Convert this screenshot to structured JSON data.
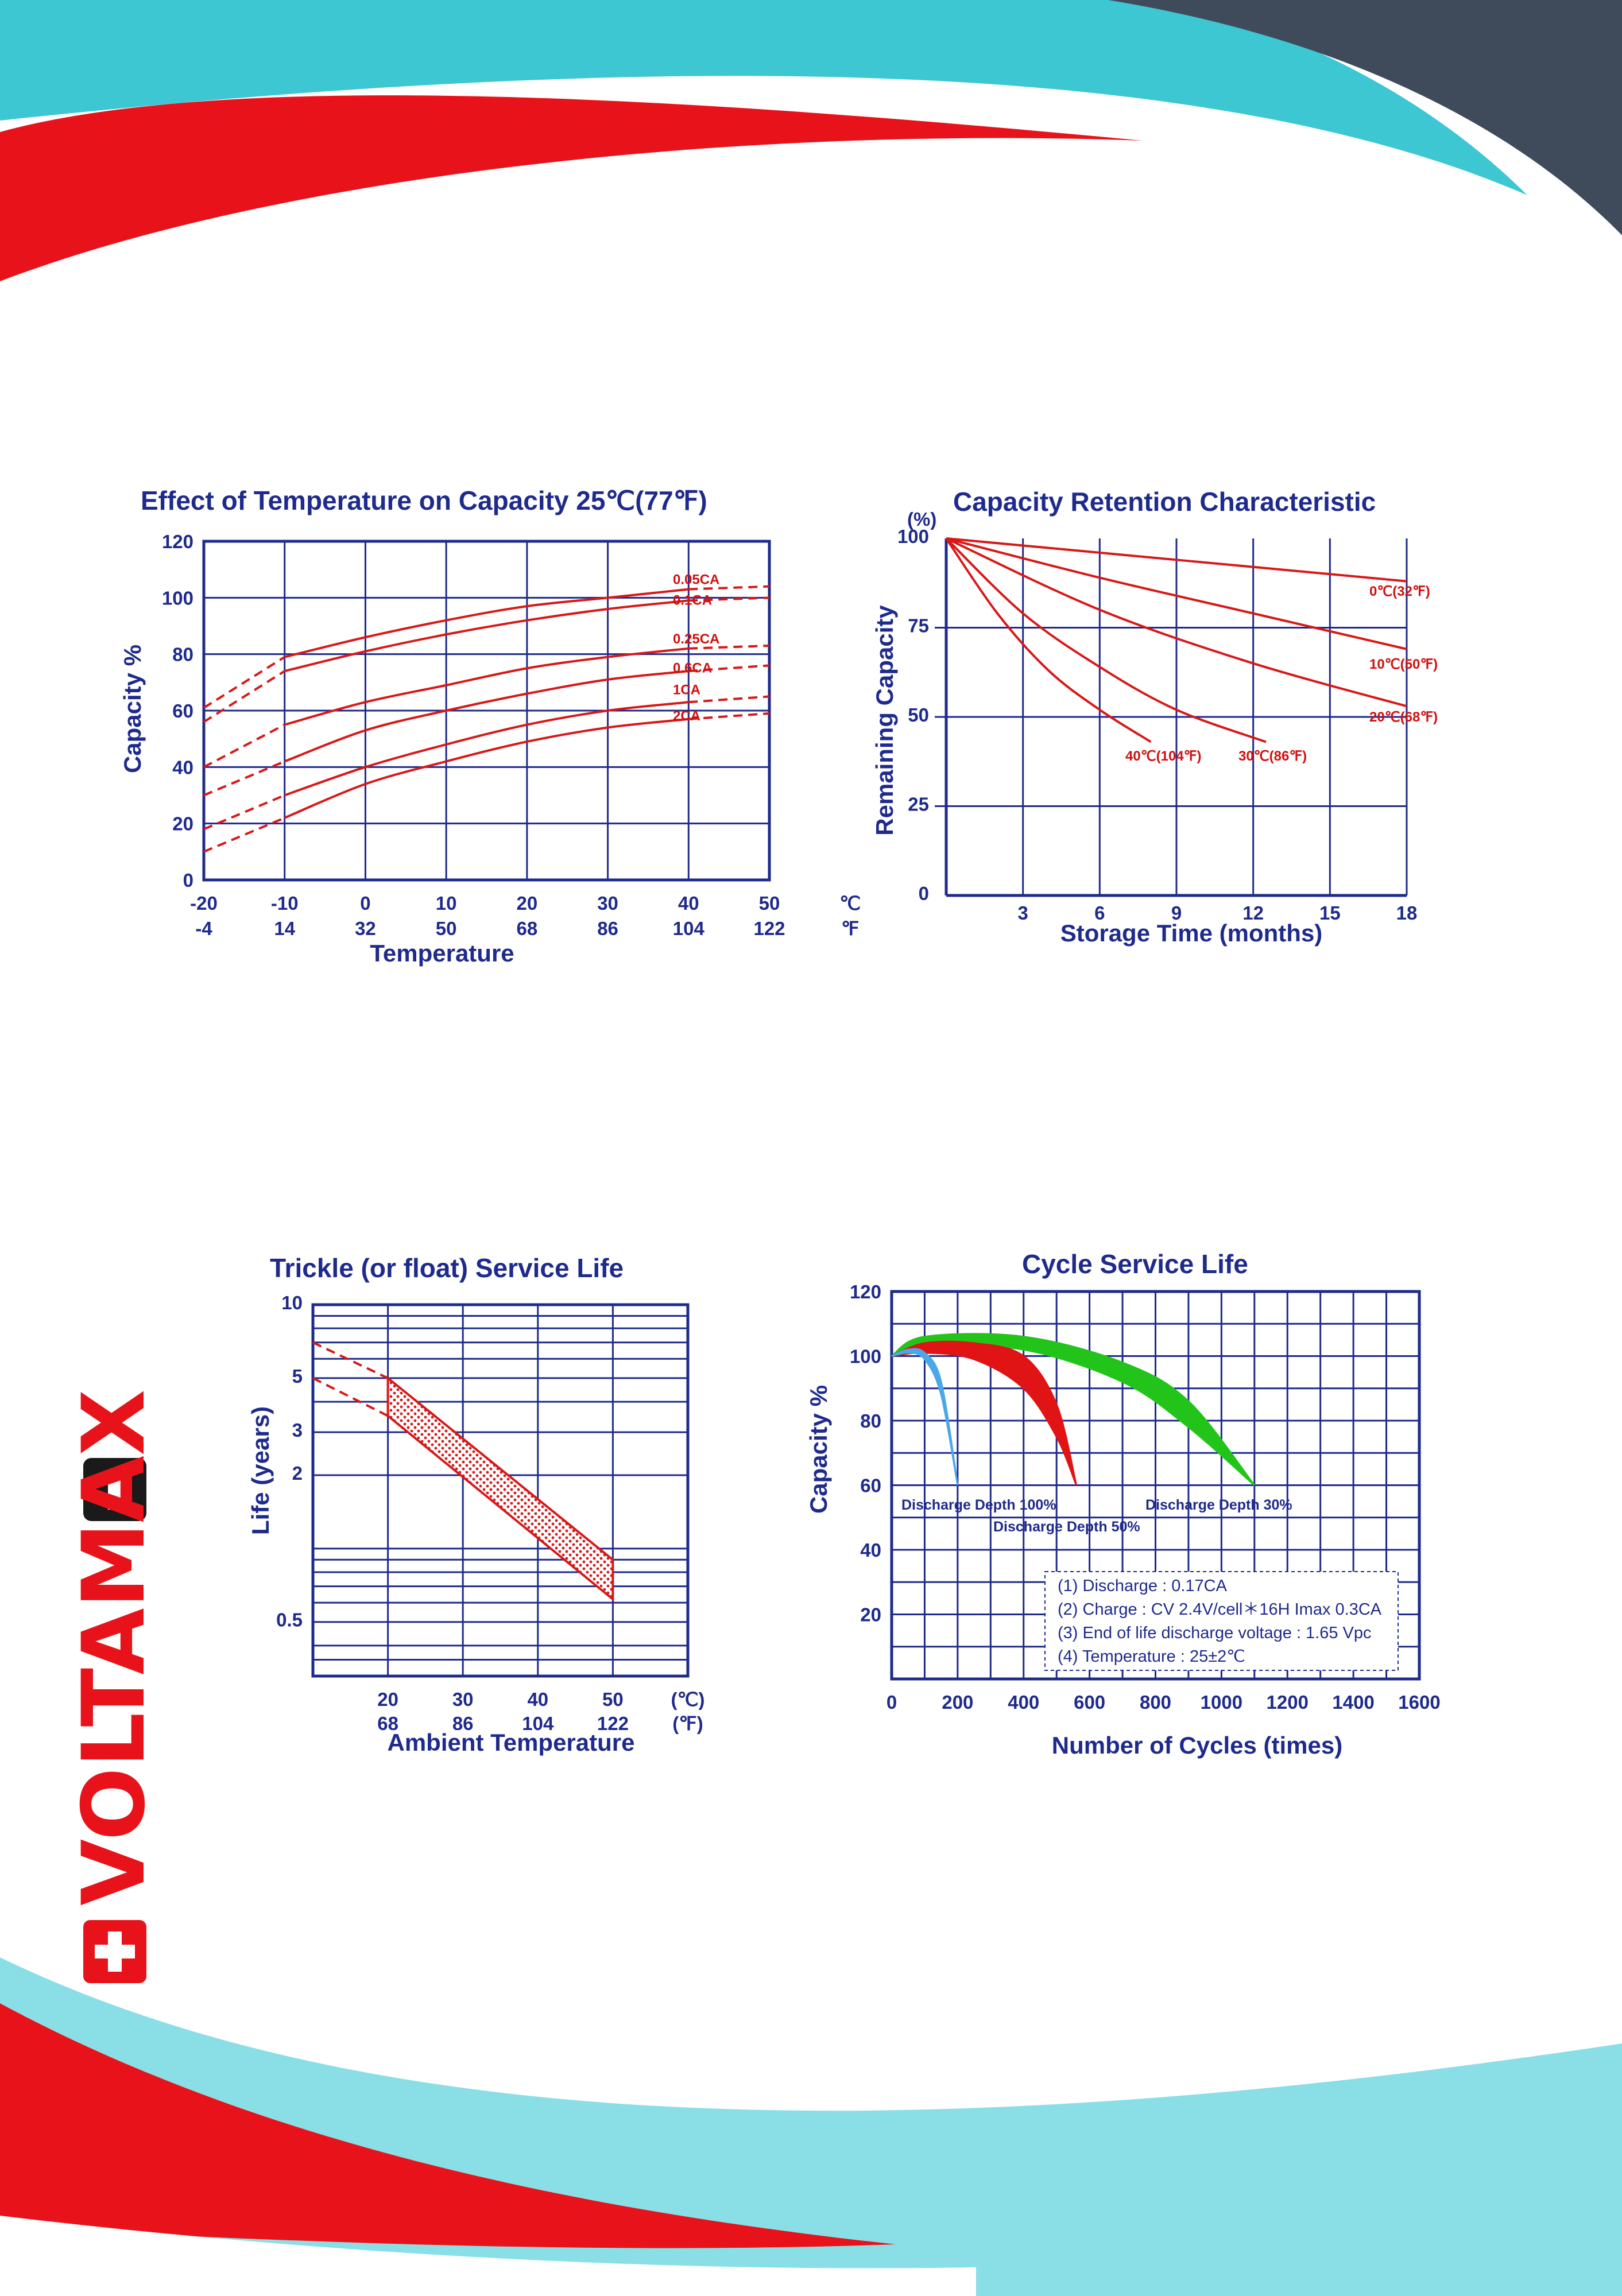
{
  "colors": {
    "navy": "#1e2a8c",
    "curve_red": "#d81818",
    "accent_red": "#e8131a",
    "accent_cyan": "#3cc7d3",
    "accent_dark": "#3f4b5b",
    "cycle_blue": "#4aa8e8",
    "cycle_green": "#22c41a"
  },
  "brand": {
    "name": "VOLTAMAX",
    "icon": "swiss-cross-icon"
  },
  "chart_data": [
    {
      "id": "temp_capacity",
      "type": "line",
      "title": "Effect of Temperature on Capacity  25℃(77℉)",
      "xlabel": "Temperature",
      "ylabel": "Capacity %",
      "xlim": [
        -20,
        50
      ],
      "ylim": [
        0,
        120
      ],
      "x_ticks_c": [
        "-20",
        "-10",
        "0",
        "10",
        "20",
        "30",
        "40",
        "50",
        "℃"
      ],
      "x_ticks_f": [
        "-4",
        "14",
        "32",
        "50",
        "68",
        "86",
        "104",
        "122",
        "℉"
      ],
      "y_ticks": [
        "0",
        "20",
        "40",
        "60",
        "80",
        "100",
        "120"
      ],
      "grid": true,
      "series": [
        {
          "name": "0.05CA",
          "x": [
            -20,
            -10,
            0,
            10,
            20,
            30,
            40,
            50
          ],
          "values": [
            61,
            79,
            86,
            92,
            97,
            100,
            103,
            104
          ]
        },
        {
          "name": "0.1CA",
          "x": [
            -20,
            -10,
            0,
            10,
            20,
            30,
            40,
            50
          ],
          "values": [
            56,
            74,
            81,
            87,
            92,
            96,
            99,
            100
          ]
        },
        {
          "name": "0.25CA",
          "x": [
            -20,
            -10,
            0,
            10,
            20,
            30,
            40,
            50
          ],
          "values": [
            40,
            55,
            63,
            69,
            75,
            79,
            82,
            83
          ]
        },
        {
          "name": "0.6CA",
          "x": [
            -20,
            -10,
            0,
            10,
            20,
            30,
            40,
            50
          ],
          "values": [
            30,
            42,
            53,
            60,
            66,
            71,
            74,
            76
          ]
        },
        {
          "name": "1CA",
          "x": [
            -20,
            -10,
            0,
            10,
            20,
            30,
            40,
            50
          ],
          "values": [
            18,
            30,
            40,
            48,
            55,
            60,
            63,
            65
          ]
        },
        {
          "name": "2CA",
          "x": [
            -20,
            -10,
            0,
            10,
            20,
            30,
            40,
            50
          ],
          "values": [
            10,
            22,
            34,
            42,
            49,
            54,
            57,
            59
          ]
        }
      ]
    },
    {
      "id": "capacity_retention",
      "type": "line",
      "title": "Capacity Retention Characteristic",
      "xlabel": "Storage Time (months)",
      "ylabel": "Remaining Capacity",
      "yunit": "(%)",
      "xlim": [
        0,
        18
      ],
      "ylim": [
        0,
        100
      ],
      "x_ticks": [
        "3",
        "6",
        "9",
        "12",
        "15",
        "18"
      ],
      "y_ticks": [
        "0",
        "25",
        "50",
        "75",
        "100"
      ],
      "grid": true,
      "series": [
        {
          "name": "0℃(32℉)",
          "x": [
            0,
            6,
            12,
            18
          ],
          "values": [
            100,
            96,
            92,
            88
          ]
        },
        {
          "name": "10℃(50℉)",
          "x": [
            0,
            6,
            12,
            18
          ],
          "values": [
            100,
            89,
            79,
            69
          ]
        },
        {
          "name": "20℃(68℉)",
          "x": [
            0,
            6,
            12,
            18
          ],
          "values": [
            100,
            80,
            65,
            53
          ]
        },
        {
          "name": "30℃(86℉)",
          "x": [
            0,
            3,
            6,
            9,
            12.5
          ],
          "values": [
            100,
            79,
            64,
            52,
            43
          ]
        },
        {
          "name": "40℃(104℉)",
          "x": [
            0,
            2,
            4,
            6,
            8
          ],
          "values": [
            100,
            79,
            63,
            52,
            43
          ]
        }
      ]
    },
    {
      "id": "trickle_life",
      "type": "area",
      "title": "Trickle (or float) Service Life",
      "xlabel": "Ambient Temperature",
      "ylabel": "Life (years)",
      "scale_y": "log",
      "xlim": [
        10,
        60
      ],
      "ylim": [
        0.3,
        10
      ],
      "x_ticks_c": [
        "20",
        "30",
        "40",
        "50",
        "(℃)"
      ],
      "x_ticks_f": [
        "68",
        "86",
        "104",
        "122",
        "(℉)"
      ],
      "y_ticks": [
        "0.5",
        "2",
        "3",
        "5",
        "10"
      ],
      "band": {
        "x": [
          20,
          50
        ],
        "upper": [
          5.0,
          0.9
        ],
        "lower": [
          3.5,
          0.62
        ],
        "extrap_x": 10,
        "extrap_upper": 7,
        "extrap_lower": 5
      }
    },
    {
      "id": "cycle_life",
      "type": "area",
      "title": "Cycle Service Life",
      "xlabel": "Number of Cycles (times)",
      "ylabel": "Capacity %",
      "xlim": [
        0,
        1600
      ],
      "ylim": [
        0,
        120
      ],
      "x_ticks": [
        "0",
        "200",
        "400",
        "600",
        "800",
        "1000",
        "1200",
        "1400",
        "1600"
      ],
      "y_ticks": [
        "20",
        "40",
        "60",
        "80",
        "100",
        "120"
      ],
      "grid": true,
      "series": [
        {
          "name": "Discharge Depth 100%",
          "color": "#4aa8e8",
          "x": [
            0,
            50,
            100,
            150,
            200
          ],
          "upper": [
            100,
            102,
            101,
            92,
            60
          ],
          "lower": [
            100,
            101,
            99,
            88,
            60
          ]
        },
        {
          "name": "Discharge Depth 50%",
          "color": "#e01414",
          "x": [
            0,
            100,
            250,
            400,
            500,
            560
          ],
          "upper": [
            100,
            104,
            104,
            100,
            85,
            60
          ],
          "lower": [
            100,
            101,
            99,
            90,
            75,
            60
          ]
        },
        {
          "name": "Discharge Depth 30%",
          "color": "#22c41a",
          "x": [
            0,
            100,
            400,
            700,
            900,
            1100
          ],
          "upper": [
            100,
            106,
            106,
            98,
            86,
            60
          ],
          "lower": [
            100,
            103,
            102,
            92,
            78,
            60
          ]
        }
      ],
      "notes": [
        "(1) Discharge : 0.17CA",
        "(2) Charge : CV 2.4V/cell＊16H Imax 0.3CA",
        "(3) End of life discharge voltage : 1.65 Vpc",
        "(4) Temperature : 25±2℃"
      ]
    }
  ]
}
